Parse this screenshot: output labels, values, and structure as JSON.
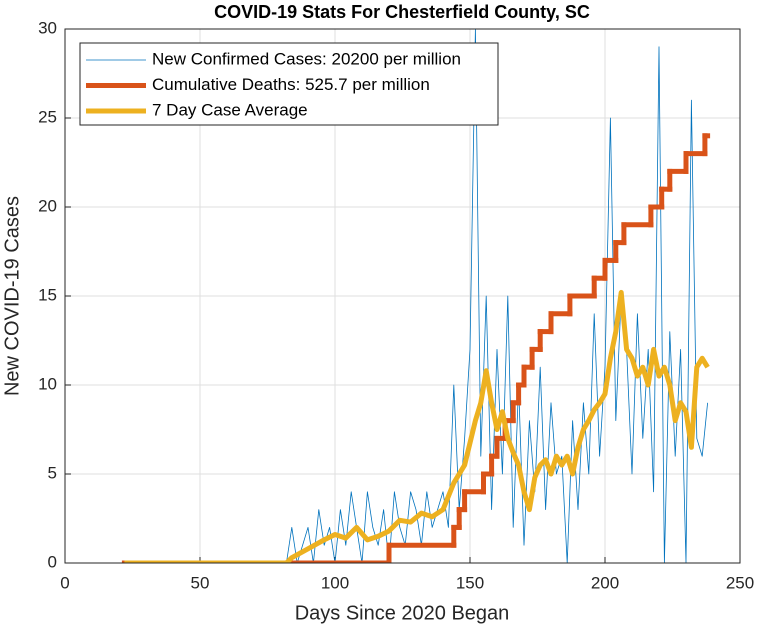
{
  "chart_data": {
    "type": "line",
    "title": "COVID-19 Stats For Chesterfield County, SC",
    "x_label": "Days Since 2020 Began",
    "y_label": "New COVID-19 Cases",
    "xlim": [
      0,
      250
    ],
    "xticks": [
      0,
      50,
      100,
      150,
      200,
      250
    ],
    "ylim": [
      0,
      30
    ],
    "yticks": [
      0,
      5,
      10,
      15,
      20,
      25,
      30
    ],
    "grid": true,
    "legend": "upper left",
    "series": [
      {
        "name": "New Confirmed Cases: 20200 per million",
        "color": "#0072BD",
        "x": [
          22,
          82,
          84,
          86,
          88,
          90,
          92,
          94,
          96,
          98,
          100,
          102,
          104,
          106,
          108,
          110,
          112,
          114,
          116,
          118,
          120,
          122,
          124,
          126,
          128,
          130,
          132,
          134,
          136,
          138,
          140,
          142,
          144,
          146,
          148,
          150,
          152,
          154,
          156,
          158,
          160,
          162,
          164,
          166,
          168,
          170,
          172,
          174,
          176,
          178,
          180,
          182,
          184,
          186,
          188,
          190,
          192,
          194,
          196,
          198,
          200,
          202,
          204,
          206,
          208,
          210,
          212,
          214,
          216,
          218,
          220,
          222,
          224,
          226,
          228,
          230,
          232,
          234,
          236,
          238
        ],
        "values": [
          0,
          0,
          2,
          0,
          1,
          2,
          0,
          3,
          1,
          2,
          0,
          3,
          1,
          4,
          2,
          0,
          4,
          2,
          1,
          3,
          0,
          4,
          2,
          1,
          4,
          3,
          1,
          4,
          2,
          3,
          4,
          2,
          10,
          3,
          7,
          12,
          30,
          6,
          15,
          3,
          12,
          5,
          15,
          2,
          10,
          1,
          8,
          4,
          11,
          3,
          9,
          5,
          6,
          0,
          8,
          3,
          9,
          5,
          14,
          6,
          11,
          25,
          8,
          15,
          12,
          5,
          14,
          7,
          12,
          4,
          29,
          0,
          13,
          6,
          12,
          0,
          26,
          7,
          6,
          9
        ]
      },
      {
        "name": "Cumulative Deaths: 525.7 per million",
        "color": "#D95319",
        "step": true,
        "x": [
          22,
          120,
          144,
          146,
          148,
          155,
          158,
          160,
          163,
          166,
          168,
          170,
          173,
          176,
          180,
          187,
          196,
          200,
          204,
          207,
          217,
          221,
          224,
          230,
          237,
          238
        ],
        "values": [
          0,
          1,
          2,
          3,
          4,
          5,
          6,
          7,
          8,
          9,
          10,
          11,
          12,
          13,
          14,
          15,
          16,
          17,
          18,
          19,
          20,
          21,
          22,
          23,
          24,
          24
        ]
      },
      {
        "name": "7 Day Case Average",
        "color": "#EDB120",
        "x": [
          22,
          82,
          84,
          90,
          96,
          100,
          104,
          108,
          112,
          116,
          120,
          124,
          128,
          132,
          136,
          140,
          144,
          148,
          152,
          154,
          156,
          158,
          160,
          162,
          164,
          166,
          168,
          170,
          172,
          174,
          176,
          178,
          180,
          182,
          184,
          186,
          188,
          190,
          192,
          194,
          196,
          198,
          200,
          202,
          204,
          206,
          208,
          210,
          212,
          214,
          216,
          218,
          220,
          222,
          224,
          226,
          228,
          230,
          232,
          234,
          236,
          238
        ],
        "values": [
          0,
          0,
          0.3,
          0.8,
          1.3,
          1.6,
          1.4,
          2,
          1.3,
          1.5,
          1.8,
          2.4,
          2.3,
          2.8,
          2.6,
          3,
          4.5,
          5.5,
          8,
          9,
          10.8,
          9,
          7.5,
          8.5,
          7,
          6.2,
          5.5,
          4,
          3,
          4.8,
          5.5,
          5.8,
          5,
          6,
          5.5,
          6,
          5,
          6.5,
          7.5,
          8,
          8.6,
          9,
          9.5,
          11.5,
          13,
          15.2,
          12,
          11.5,
          10.5,
          11,
          10,
          12,
          10.5,
          11,
          10,
          8,
          9,
          8.5,
          6.5,
          11,
          11.5,
          11
        ]
      }
    ]
  }
}
